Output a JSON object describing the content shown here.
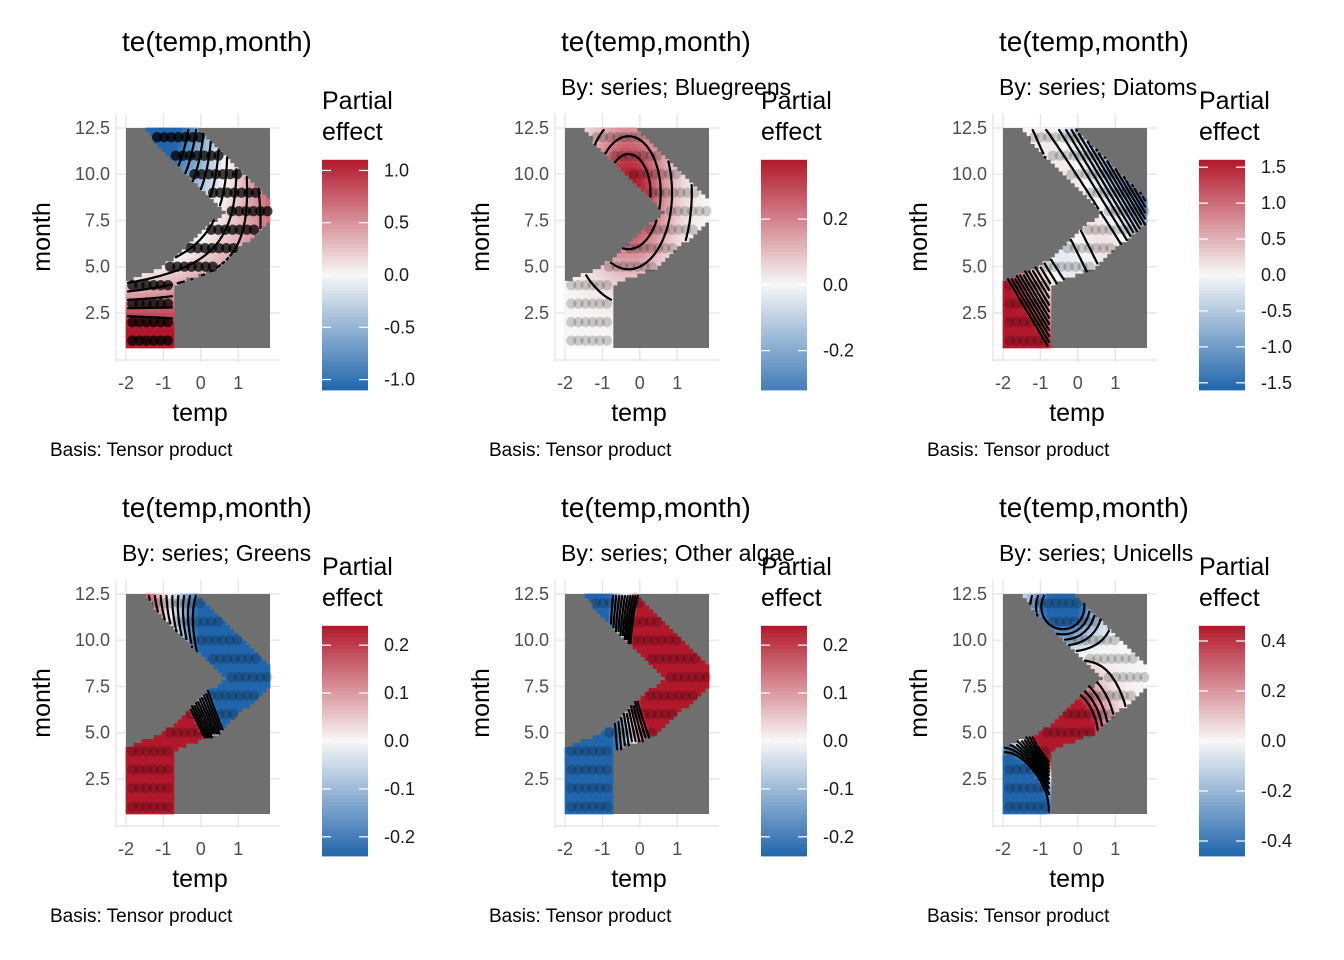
{
  "colors": {
    "panel_bg": "#6f6f6f",
    "grid": "#e6e6e6",
    "scale_low": "#2166ac",
    "scale_mid": "#f7f7f7",
    "scale_high": "#b2182b",
    "contour": "#000000",
    "point": "#000000"
  },
  "chart_data": [
    {
      "type": "heatmap",
      "title": "te(temp,month)",
      "subtitle": "",
      "xlabel": "temp",
      "ylabel": "month",
      "caption": "Basis: Tensor product",
      "legend_title": [
        "Partial",
        "effect"
      ],
      "legend_position": "right",
      "xlim": [
        -2,
        1.85
      ],
      "ylim": [
        0.6,
        12.5
      ],
      "x_ticks": [
        -2,
        -1,
        0,
        1
      ],
      "y_ticks": [
        2.5,
        5.0,
        7.5,
        10.0,
        12.5
      ],
      "colorbar_range": [
        -1.1,
        1.1
      ],
      "colorbar_ticks": [
        -1.0,
        -0.5,
        0.0,
        0.5,
        1.0
      ],
      "contour_count": 11,
      "points_alpha": 0.75,
      "surface": {
        "a": 0.35,
        "b": -0.9,
        "c": 0.5,
        "d": 0.3,
        "f": 0.0,
        "g": 0.0,
        "h": 0.0,
        "i": 0.0
      }
    },
    {
      "type": "heatmap",
      "title": "te(temp,month)",
      "subtitle": "By: series; Bluegreens",
      "xlabel": "temp",
      "ylabel": "month",
      "caption": "Basis: Tensor product",
      "legend_title": [
        "Partial",
        "effect"
      ],
      "legend_position": "right",
      "xlim": [
        -2,
        1.85
      ],
      "ylim": [
        0.6,
        12.5
      ],
      "x_ticks": [
        -2,
        -1,
        0,
        1
      ],
      "y_ticks": [
        2.5,
        5.0,
        7.5,
        10.0,
        12.5
      ],
      "colorbar_range": [
        -0.32,
        0.38
      ],
      "colorbar_ticks": [
        -0.2,
        0.0,
        0.2
      ],
      "contour_count": 7,
      "points_alpha": 0.18,
      "surface": {
        "a": 0.0,
        "b": 0.0,
        "c": 0.0,
        "d": 0.0,
        "f": 0.4,
        "g": -0.3,
        "h": 0.25,
        "i": 0.0
      }
    },
    {
      "type": "heatmap",
      "title": "te(temp,month)",
      "subtitle": "By: series; Diatoms",
      "xlabel": "temp",
      "ylabel": "month",
      "caption": "Basis: Tensor product",
      "legend_title": [
        "Partial",
        "effect"
      ],
      "legend_position": "right",
      "xlim": [
        -2,
        1.85
      ],
      "ylim": [
        0.6,
        12.5
      ],
      "x_ticks": [
        -2,
        -1,
        0,
        1
      ],
      "y_ticks": [
        2.5,
        5.0,
        7.5,
        10.0,
        12.5
      ],
      "colorbar_range": [
        -1.6,
        1.6
      ],
      "colorbar_ticks": [
        -1.5,
        -1.0,
        -0.5,
        0.0,
        0.5,
        1.0,
        1.5
      ],
      "contour_count": 24,
      "points_alpha": 0.18,
      "surface": {
        "a": -0.5,
        "b": -0.85,
        "c": 0.0,
        "d": 0.0,
        "f": 0.0,
        "g": 0.0,
        "h": 0.0,
        "i": 0.6
      }
    },
    {
      "type": "heatmap",
      "title": "te(temp,month)",
      "subtitle": "By: series; Greens",
      "xlabel": "temp",
      "ylabel": "month",
      "caption": "Basis: Tensor product",
      "legend_title": [
        "Partial",
        "effect"
      ],
      "legend_position": "right",
      "xlim": [
        -2,
        1.85
      ],
      "ylim": [
        0.6,
        12.5
      ],
      "x_ticks": [
        -2,
        -1,
        0,
        1
      ],
      "y_ticks": [
        2.5,
        5.0,
        7.5,
        10.0,
        12.5
      ],
      "colorbar_range": [
        -0.24,
        0.24
      ],
      "colorbar_ticks": [
        -0.2,
        -0.1,
        0.0,
        0.1,
        0.2
      ],
      "contour_count": 10,
      "points_alpha": 0.18,
      "surface": {
        "a": -0.6,
        "b": -0.7,
        "c": 0.3,
        "d": 0.45,
        "f": 0.0,
        "g": 0.0,
        "h": 0.0,
        "i": 0.0
      }
    },
    {
      "type": "heatmap",
      "title": "te(temp,month)",
      "subtitle": "By: series; Other algae",
      "xlabel": "temp",
      "ylabel": "month",
      "caption": "Basis: Tensor product",
      "legend_title": [
        "Partial",
        "effect"
      ],
      "legend_position": "right",
      "xlim": [
        -2,
        1.85
      ],
      "ylim": [
        0.6,
        12.5
      ],
      "x_ticks": [
        -2,
        -1,
        0,
        1
      ],
      "y_ticks": [
        2.5,
        5.0,
        7.5,
        10.0,
        12.5
      ],
      "colorbar_range": [
        -0.24,
        0.24
      ],
      "colorbar_ticks": [
        -0.2,
        -0.1,
        0.0,
        0.1,
        0.2
      ],
      "contour_count": 10,
      "points_alpha": 0.18,
      "surface": {
        "a": 0.35,
        "b": 0.0,
        "c": 0.0,
        "d": 0.0,
        "f": 0.7,
        "g": 0.75,
        "h": 0.3,
        "i": 0.0
      }
    },
    {
      "type": "heatmap",
      "title": "te(temp,month)",
      "subtitle": "By: series; Unicells",
      "xlabel": "temp",
      "ylabel": "month",
      "caption": "Basis: Tensor product",
      "legend_title": [
        "Partial",
        "effect"
      ],
      "legend_position": "right",
      "xlim": [
        -2,
        1.85
      ],
      "ylim": [
        0.6,
        12.5
      ],
      "x_ticks": [
        -2,
        -1,
        0,
        1
      ],
      "y_ticks": [
        2.5,
        5.0,
        7.5,
        10.0,
        12.5
      ],
      "colorbar_range": [
        -0.46,
        0.46
      ],
      "colorbar_ticks": [
        -0.4,
        -0.2,
        0.0,
        0.2,
        0.4
      ],
      "contour_count": 10,
      "points_alpha": 0.18,
      "surface": {
        "a": 0.0,
        "b": 0.0,
        "c": 0.0,
        "d": 0.0,
        "f": 0.0,
        "g": 0.0,
        "h": 0.0,
        "i": 0.0,
        "bump": [
          -0.5,
          4.7,
          0.75,
          2.0,
          1.0
        ],
        "dip": [
          -1.6,
          1.8,
          0.7,
          1.8,
          -1.2
        ],
        "dip2": [
          -0.4,
          11.8,
          0.6,
          1.3,
          -0.6
        ]
      }
    }
  ]
}
